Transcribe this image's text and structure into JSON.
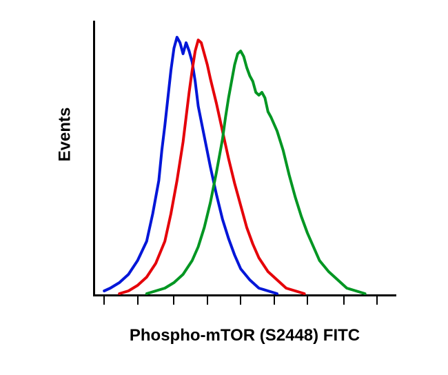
{
  "chart": {
    "type": "histogram-overlay",
    "x_axis_label": "Phospho-mTOR (S2448) FITC",
    "y_axis_label": "Events",
    "label_fontsize": 24,
    "label_fontweight": "bold",
    "background_color": "#ffffff",
    "axis_color": "#000000",
    "axis_width": 3,
    "xlim": [
      0,
      100
    ],
    "ylim": [
      0,
      100
    ],
    "x_scale": "log",
    "x_tick_positions": [
      3,
      14,
      26,
      37,
      48,
      59,
      70,
      82,
      93
    ],
    "line_width": 4,
    "curves": [
      {
        "name": "blue",
        "color": "#0016d8",
        "points": [
          [
            3,
            2
          ],
          [
            5,
            3
          ],
          [
            8,
            5
          ],
          [
            11,
            8
          ],
          [
            14,
            13
          ],
          [
            17,
            20
          ],
          [
            19,
            30
          ],
          [
            21,
            42
          ],
          [
            22,
            53
          ],
          [
            23,
            62
          ],
          [
            24,
            72
          ],
          [
            25,
            82
          ],
          [
            26,
            90
          ],
          [
            27,
            94
          ],
          [
            28,
            92
          ],
          [
            29,
            88
          ],
          [
            30,
            92
          ],
          [
            31,
            89
          ],
          [
            32,
            85
          ],
          [
            33,
            78
          ],
          [
            34,
            69
          ],
          [
            36,
            58
          ],
          [
            38,
            47
          ],
          [
            40,
            37
          ],
          [
            42,
            28
          ],
          [
            44,
            21
          ],
          [
            46,
            15
          ],
          [
            48,
            10
          ],
          [
            51,
            6
          ],
          [
            54,
            3
          ],
          [
            57,
            2
          ],
          [
            60,
            1
          ]
        ]
      },
      {
        "name": "red",
        "color": "#e50009",
        "points": [
          [
            8,
            1
          ],
          [
            11,
            2
          ],
          [
            14,
            4
          ],
          [
            17,
            7
          ],
          [
            20,
            12
          ],
          [
            23,
            20
          ],
          [
            25,
            30
          ],
          [
            27,
            42
          ],
          [
            29,
            56
          ],
          [
            30,
            65
          ],
          [
            31,
            74
          ],
          [
            32,
            82
          ],
          [
            33,
            89
          ],
          [
            34,
            93
          ],
          [
            35,
            92
          ],
          [
            36,
            88
          ],
          [
            37,
            84
          ],
          [
            38,
            79
          ],
          [
            40,
            70
          ],
          [
            42,
            60
          ],
          [
            44,
            50
          ],
          [
            46,
            41
          ],
          [
            48,
            33
          ],
          [
            50,
            25
          ],
          [
            52,
            19
          ],
          [
            54,
            14
          ],
          [
            57,
            9
          ],
          [
            60,
            6
          ],
          [
            63,
            3
          ],
          [
            66,
            2
          ],
          [
            69,
            1
          ]
        ]
      },
      {
        "name": "green",
        "color": "#009622",
        "points": [
          [
            17,
            1
          ],
          [
            20,
            2
          ],
          [
            23,
            3
          ],
          [
            26,
            5
          ],
          [
            29,
            8
          ],
          [
            32,
            13
          ],
          [
            34,
            18
          ],
          [
            36,
            25
          ],
          [
            38,
            34
          ],
          [
            40,
            45
          ],
          [
            42,
            57
          ],
          [
            43,
            65
          ],
          [
            44,
            72
          ],
          [
            45,
            78
          ],
          [
            46,
            84
          ],
          [
            47,
            88
          ],
          [
            48,
            89
          ],
          [
            49,
            87
          ],
          [
            50,
            83
          ],
          [
            51,
            80
          ],
          [
            52,
            78
          ],
          [
            53,
            74
          ],
          [
            54,
            73
          ],
          [
            55,
            74
          ],
          [
            56,
            72
          ],
          [
            57,
            67
          ],
          [
            58,
            65
          ],
          [
            60,
            60
          ],
          [
            62,
            53
          ],
          [
            64,
            44
          ],
          [
            66,
            36
          ],
          [
            68,
            29
          ],
          [
            70,
            23
          ],
          [
            72,
            18
          ],
          [
            74,
            13
          ],
          [
            77,
            9
          ],
          [
            80,
            6
          ],
          [
            83,
            3
          ],
          [
            86,
            2
          ],
          [
            89,
            1
          ]
        ]
      }
    ]
  }
}
